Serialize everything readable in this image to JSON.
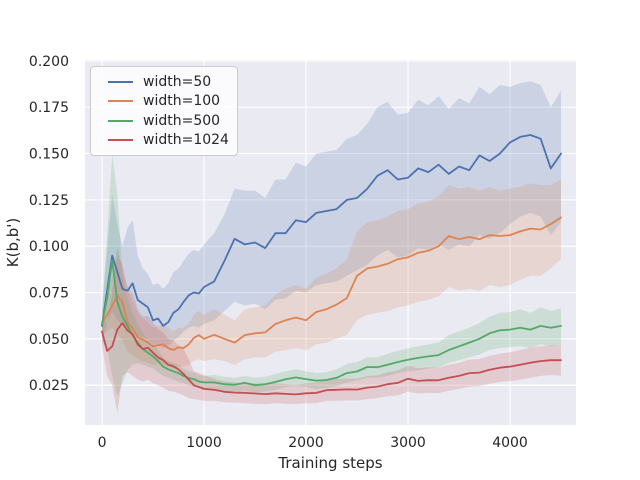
{
  "figure": {
    "background": "#ffffff",
    "plot_background": "#eaeaf2",
    "grid_color": "#ffffff",
    "text_color": "#262626",
    "legend_border_color": "#cccccc"
  },
  "chart_data": {
    "type": "line",
    "title": "",
    "xlabel": "Training steps",
    "ylabel": "K(b,b')",
    "grid": true,
    "legend_position": "upper left",
    "xlim": [
      -167,
      4647
    ],
    "ylim": [
      0.0035,
      0.2005
    ],
    "xticks": {
      "values": [
        0,
        1000,
        2000,
        3000,
        4000
      ],
      "labels": [
        "0",
        "1000",
        "2000",
        "3000",
        "4000"
      ]
    },
    "yticks": {
      "values": [
        0.025,
        0.05,
        0.075,
        0.1,
        0.125,
        0.15,
        0.175,
        0.2
      ],
      "labels": [
        "0.025",
        "0.050",
        "0.075",
        "0.100",
        "0.125",
        "0.150",
        "0.175",
        "0.200"
      ]
    },
    "x": [
      0,
      50,
      100,
      150,
      200,
      250,
      300,
      350,
      400,
      450,
      500,
      550,
      600,
      650,
      700,
      750,
      800,
      850,
      900,
      950,
      1000,
      1100,
      1200,
      1300,
      1400,
      1500,
      1600,
      1700,
      1800,
      1900,
      2000,
      2100,
      2200,
      2300,
      2400,
      2500,
      2600,
      2700,
      2800,
      2900,
      3000,
      3100,
      3200,
      3300,
      3400,
      3500,
      3600,
      3700,
      3800,
      3900,
      4000,
      4100,
      4200,
      4300,
      4400,
      4500
    ],
    "series": [
      {
        "name": "width=50",
        "color": "#4c72b0",
        "y": [
          0.057,
          0.076,
          0.095,
          0.086,
          0.077,
          0.076,
          0.08,
          0.071,
          0.069,
          0.067,
          0.06,
          0.061,
          0.057,
          0.059,
          0.064,
          0.066,
          0.07,
          0.0735,
          0.075,
          0.0745,
          0.078,
          0.081,
          0.092,
          0.104,
          0.101,
          0.102,
          0.099,
          0.107,
          0.107,
          0.114,
          0.113,
          0.118,
          0.119,
          0.12,
          0.125,
          0.126,
          0.131,
          0.138,
          0.141,
          0.136,
          0.137,
          0.142,
          0.14,
          0.144,
          0.139,
          0.143,
          0.141,
          0.149,
          0.146,
          0.15,
          0.156,
          0.159,
          0.16,
          0.158,
          0.142,
          0.15
        ],
        "band_lo": [
          0.05,
          0.058,
          0.065,
          0.06,
          0.057,
          0.055,
          0.056,
          0.052,
          0.051,
          0.05,
          0.047,
          0.047,
          0.045,
          0.046,
          0.049,
          0.051,
          0.054,
          0.056,
          0.057,
          0.056,
          0.058,
          0.06,
          0.065,
          0.07,
          0.068,
          0.069,
          0.066,
          0.071,
          0.072,
          0.076,
          0.075,
          0.079,
          0.08,
          0.081,
          0.084,
          0.087,
          0.09,
          0.095,
          0.098,
          0.094,
          0.095,
          0.099,
          0.098,
          0.101,
          0.098,
          0.101,
          0.1,
          0.106,
          0.104,
          0.107,
          0.112,
          0.116,
          0.118,
          0.116,
          0.106,
          0.113
        ],
        "band_hi": [
          0.064,
          0.098,
          0.128,
          0.112,
          0.1,
          0.11,
          0.114,
          0.095,
          0.088,
          0.085,
          0.079,
          0.08,
          0.077,
          0.08,
          0.086,
          0.088,
          0.092,
          0.096,
          0.098,
          0.097,
          0.101,
          0.107,
          0.117,
          0.131,
          0.13,
          0.13,
          0.126,
          0.136,
          0.136,
          0.145,
          0.143,
          0.15,
          0.151,
          0.152,
          0.158,
          0.16,
          0.166,
          0.175,
          0.178,
          0.171,
          0.172,
          0.179,
          0.176,
          0.181,
          0.174,
          0.18,
          0.177,
          0.186,
          0.182,
          0.187,
          0.186,
          0.188,
          0.189,
          0.187,
          0.175,
          0.184
        ]
      },
      {
        "name": "width=100",
        "color": "#dd8452",
        "y": [
          0.058,
          0.063,
          0.068,
          0.0735,
          0.07,
          0.059,
          0.0555,
          0.051,
          0.0495,
          0.048,
          0.046,
          0.0465,
          0.047,
          0.045,
          0.044,
          0.0455,
          0.045,
          0.047,
          0.0505,
          0.052,
          0.05,
          0.0522,
          0.05,
          0.048,
          0.052,
          0.053,
          0.0535,
          0.058,
          0.06,
          0.0615,
          0.06,
          0.0645,
          0.066,
          0.0685,
          0.072,
          0.084,
          0.088,
          0.089,
          0.0905,
          0.093,
          0.094,
          0.0965,
          0.0975,
          0.1,
          0.1055,
          0.1038,
          0.105,
          0.1038,
          0.106,
          0.1055,
          0.106,
          0.108,
          0.1095,
          0.109,
          0.112,
          0.1155
        ],
        "band_lo": [
          0.051,
          0.054,
          0.056,
          0.053,
          0.049,
          0.043,
          0.041,
          0.039,
          0.038,
          0.037,
          0.036,
          0.036,
          0.036,
          0.035,
          0.034,
          0.035,
          0.035,
          0.036,
          0.038,
          0.039,
          0.038,
          0.039,
          0.038,
          0.036,
          0.039,
          0.04,
          0.04,
          0.043,
          0.044,
          0.045,
          0.044,
          0.047,
          0.048,
          0.05,
          0.052,
          0.06,
          0.063,
          0.064,
          0.065,
          0.067,
          0.068,
          0.07,
          0.071,
          0.073,
          0.078,
          0.076,
          0.077,
          0.076,
          0.079,
          0.078,
          0.079,
          0.082,
          0.084,
          0.084,
          0.088,
          0.093
        ],
        "band_hi": [
          0.065,
          0.075,
          0.083,
          0.094,
          0.091,
          0.077,
          0.07,
          0.064,
          0.061,
          0.059,
          0.056,
          0.057,
          0.058,
          0.056,
          0.054,
          0.056,
          0.056,
          0.058,
          0.063,
          0.065,
          0.063,
          0.066,
          0.063,
          0.06,
          0.066,
          0.067,
          0.068,
          0.074,
          0.077,
          0.079,
          0.077,
          0.083,
          0.085,
          0.088,
          0.093,
          0.108,
          0.113,
          0.114,
          0.116,
          0.119,
          0.12,
          0.123,
          0.124,
          0.127,
          0.133,
          0.131,
          0.132,
          0.13,
          0.132,
          0.13,
          0.131,
          0.132,
          0.134,
          0.133,
          0.133,
          0.136
        ]
      },
      {
        "name": "width=500",
        "color": "#55a868",
        "y": [
          0.058,
          0.072,
          0.0925,
          0.07,
          0.062,
          0.057,
          0.052,
          0.048,
          0.0445,
          0.0425,
          0.0405,
          0.038,
          0.035,
          0.0335,
          0.0325,
          0.0315,
          0.03,
          0.0288,
          0.0283,
          0.027,
          0.0265,
          0.0265,
          0.0255,
          0.0252,
          0.0262,
          0.025,
          0.0255,
          0.0267,
          0.0282,
          0.0292,
          0.0283,
          0.0274,
          0.0278,
          0.029,
          0.0315,
          0.0324,
          0.0348,
          0.0347,
          0.036,
          0.0375,
          0.0387,
          0.0397,
          0.0405,
          0.0412,
          0.044,
          0.046,
          0.048,
          0.05,
          0.053,
          0.0546,
          0.055,
          0.056,
          0.055,
          0.057,
          0.056,
          0.057
        ],
        "band_lo": [
          0.048,
          0.045,
          0.03,
          0.019,
          0.026,
          0.033,
          0.036,
          0.037,
          0.036,
          0.035,
          0.034,
          0.032,
          0.03,
          0.029,
          0.028,
          0.027,
          0.026,
          0.025,
          0.024,
          0.0235,
          0.023,
          0.0225,
          0.0215,
          0.021,
          0.022,
          0.021,
          0.0215,
          0.0225,
          0.024,
          0.0245,
          0.024,
          0.023,
          0.0235,
          0.0245,
          0.0265,
          0.0275,
          0.029,
          0.029,
          0.03,
          0.0315,
          0.0325,
          0.033,
          0.034,
          0.0345,
          0.037,
          0.0385,
          0.04,
          0.0415,
          0.044,
          0.045,
          0.0455,
          0.046,
          0.045,
          0.047,
          0.046,
          0.047
        ],
        "band_hi": [
          0.068,
          0.105,
          0.15,
          0.128,
          0.085,
          0.072,
          0.064,
          0.058,
          0.053,
          0.05,
          0.047,
          0.044,
          0.04,
          0.038,
          0.037,
          0.036,
          0.034,
          0.0325,
          0.032,
          0.0305,
          0.03,
          0.0305,
          0.0295,
          0.029,
          0.03,
          0.029,
          0.0295,
          0.031,
          0.0325,
          0.0335,
          0.0325,
          0.0315,
          0.032,
          0.0335,
          0.0365,
          0.0375,
          0.04,
          0.04,
          0.042,
          0.0435,
          0.045,
          0.046,
          0.047,
          0.048,
          0.052,
          0.054,
          0.056,
          0.0585,
          0.062,
          0.064,
          0.0645,
          0.066,
          0.064,
          0.067,
          0.065,
          0.0665
        ]
      },
      {
        "name": "width=1024",
        "color": "#c44e52",
        "y": [
          0.054,
          0.0435,
          0.046,
          0.055,
          0.0585,
          0.0545,
          0.0525,
          0.047,
          0.0445,
          0.0452,
          0.0425,
          0.04,
          0.0385,
          0.036,
          0.0352,
          0.0335,
          0.031,
          0.028,
          0.025,
          0.024,
          0.023,
          0.0225,
          0.0214,
          0.021,
          0.0208,
          0.0205,
          0.0202,
          0.0206,
          0.0203,
          0.02,
          0.0206,
          0.0208,
          0.0223,
          0.0225,
          0.0227,
          0.0226,
          0.0237,
          0.0242,
          0.0255,
          0.0262,
          0.0285,
          0.0273,
          0.0277,
          0.0276,
          0.029,
          0.03,
          0.0315,
          0.0318,
          0.0333,
          0.0344,
          0.035,
          0.036,
          0.0371,
          0.038,
          0.0385,
          0.0385
        ],
        "band_lo": [
          0.046,
          0.03,
          0.025,
          0.01,
          0.03,
          0.032,
          0.03,
          0.028,
          0.027,
          0.028,
          0.026,
          0.025,
          0.0235,
          0.022,
          0.0215,
          0.0205,
          0.0195,
          0.018,
          0.0175,
          0.017,
          0.0165,
          0.0165,
          0.0158,
          0.0155,
          0.0153,
          0.015,
          0.0148,
          0.0152,
          0.015,
          0.0148,
          0.0152,
          0.0153,
          0.0165,
          0.0166,
          0.0168,
          0.0167,
          0.0175,
          0.018,
          0.019,
          0.0195,
          0.0215,
          0.0205,
          0.0208,
          0.0207,
          0.022,
          0.023,
          0.0242,
          0.0245,
          0.0258,
          0.0268,
          0.0272,
          0.028,
          0.029,
          0.03,
          0.0305,
          0.0302
        ],
        "band_hi": [
          0.062,
          0.058,
          0.075,
          0.1,
          0.088,
          0.078,
          0.075,
          0.066,
          0.062,
          0.0625,
          0.059,
          0.055,
          0.0535,
          0.05,
          0.049,
          0.0465,
          0.0445,
          0.039,
          0.0325,
          0.0315,
          0.0305,
          0.0285,
          0.027,
          0.0265,
          0.0263,
          0.026,
          0.0256,
          0.026,
          0.0256,
          0.0252,
          0.026,
          0.0263,
          0.0281,
          0.0284,
          0.0286,
          0.0285,
          0.0299,
          0.0304,
          0.032,
          0.0329,
          0.0355,
          0.0341,
          0.0346,
          0.0345,
          0.036,
          0.037,
          0.0388,
          0.0391,
          0.0408,
          0.042,
          0.0428,
          0.044,
          0.0452,
          0.046,
          0.0465,
          0.0468
        ]
      }
    ]
  }
}
